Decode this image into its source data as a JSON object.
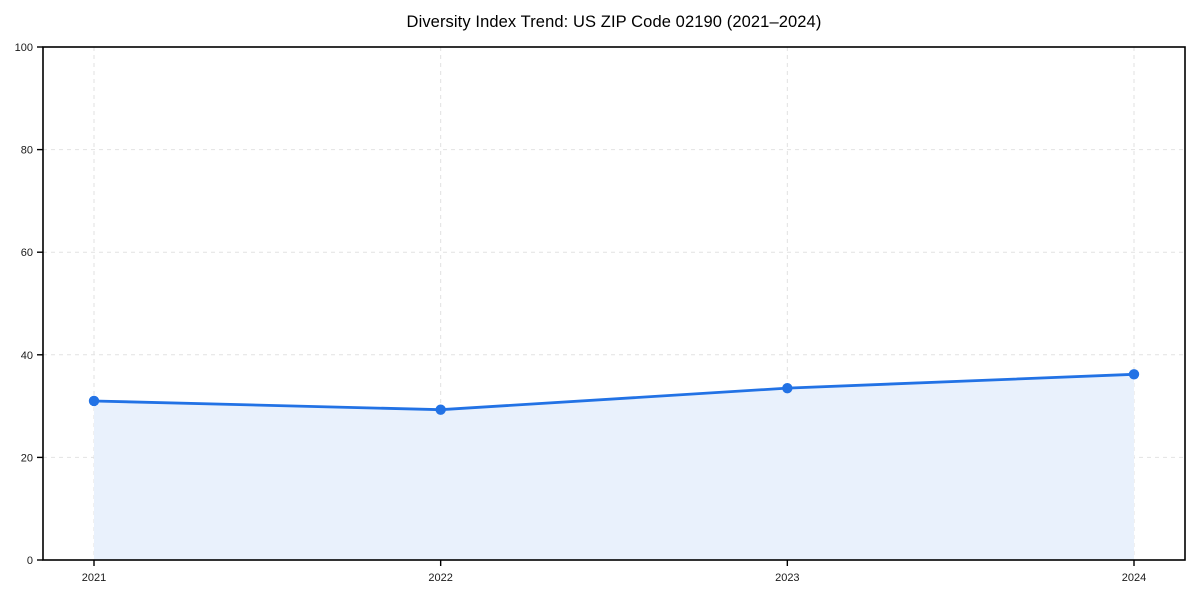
{
  "title": "Diversity Index Trend: US ZIP Code 02190 (2021–2024)",
  "chart_data": {
    "type": "area",
    "title": "Diversity Index Trend: US ZIP Code 02190 (2021–2024)",
    "x": [
      "2021",
      "2022",
      "2023",
      "2024"
    ],
    "series": [
      {
        "name": "Diversity Index",
        "values": [
          31.0,
          29.3,
          33.5,
          36.2
        ]
      }
    ],
    "xlabel": "",
    "ylabel": "",
    "ylim": [
      0,
      100
    ],
    "yticks": [
      0,
      20,
      40,
      60,
      80,
      100
    ],
    "grid": "dashed, horizontal and vertical",
    "legend_position": "none",
    "colors": {
      "line": "#2272e5",
      "marker": "#2272e5",
      "fill": "#e9f1fc",
      "grid": "#e2e2e2",
      "axis": "#000000",
      "tick_text": "#1a1a1a",
      "background": "#ffffff"
    }
  }
}
